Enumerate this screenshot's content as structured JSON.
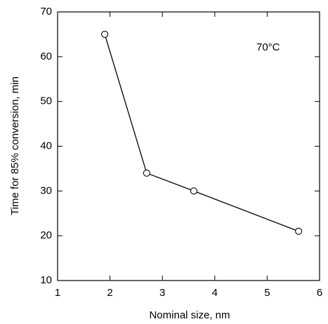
{
  "chart_data": {
    "type": "line",
    "x_label": "Nominal size, nm",
    "y_label": "Time for 85% conversion, min",
    "annotation": "70°C",
    "x": [
      1.9,
      2.7,
      3.6,
      5.6
    ],
    "series": [
      {
        "color": "#000000",
        "values": [
          65,
          34,
          30,
          21
        ]
      }
    ],
    "xlim": [
      1,
      6
    ],
    "xticks": [
      1,
      2,
      3,
      4,
      5,
      6
    ],
    "ylim": [
      10,
      70
    ],
    "yticks": [
      10,
      20,
      30,
      40,
      50,
      60,
      70
    ]
  }
}
